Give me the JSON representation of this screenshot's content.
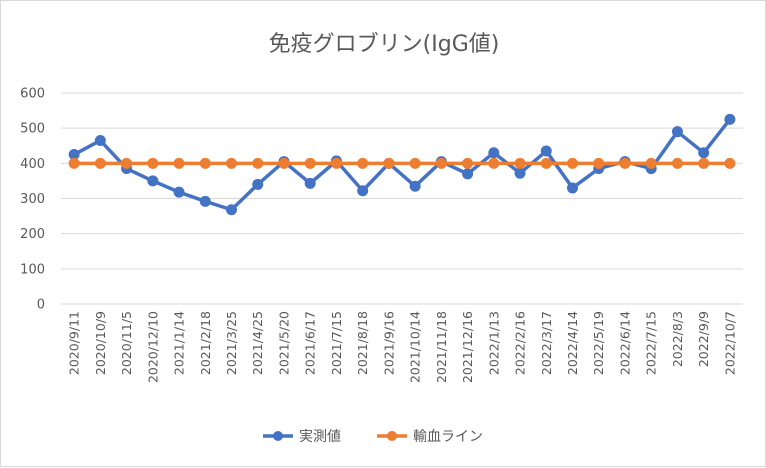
{
  "chart_data": {
    "type": "line",
    "title": "免疫グロブリン(IgG値)",
    "xlabel": "",
    "ylabel": "",
    "ylim": [
      0,
      600
    ],
    "yticks": [
      0,
      100,
      200,
      300,
      400,
      500,
      600
    ],
    "grid": true,
    "legend_position": "bottom",
    "categories": [
      "2020/9/11",
      "2020/10/9",
      "2020/11/5",
      "2020/12/10",
      "2021/1/14",
      "2021/2/18",
      "2021/3/25",
      "2021/4/25",
      "2021/5/20",
      "2021/6/17",
      "2021/7/15",
      "2021/8/18",
      "2021/9/16",
      "2021/10/14",
      "2021/11/18",
      "2021/12/16",
      "2022/1/13",
      "2022/2/16",
      "2022/3/17",
      "2022/4/14",
      "2022/5/19",
      "2022/6/14",
      "2022/7/15",
      "2022/8/3",
      "2022/9/9",
      "2022/10/7"
    ],
    "series": [
      {
        "name": "実測値",
        "color": "#4472c4",
        "values": [
          425,
          465,
          385,
          350,
          318,
          292,
          268,
          340,
          405,
          343,
          407,
          322,
          400,
          335,
          405,
          370,
          430,
          372,
          435,
          330,
          385,
          405,
          385,
          490,
          430,
          525
        ]
      },
      {
        "name": "輸血ライン",
        "color": "#ed7d31",
        "values": [
          400,
          400,
          400,
          400,
          400,
          400,
          400,
          400,
          400,
          400,
          400,
          400,
          400,
          400,
          400,
          400,
          400,
          400,
          400,
          400,
          400,
          400,
          400,
          400,
          400,
          400
        ]
      }
    ]
  }
}
